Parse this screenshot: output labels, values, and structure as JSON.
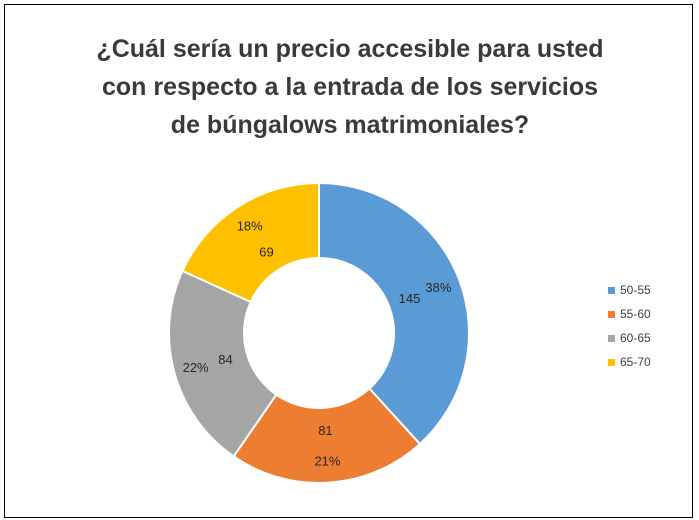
{
  "chart_data": {
    "type": "pie",
    "variant": "donut",
    "title_lines": [
      "¿Cuál sería un precio accesible para usted",
      "con respecto a la entrada de los servicios",
      "de búngalows matrimoniales?"
    ],
    "categories": [
      "50-55",
      "55-60",
      "60-65",
      "65-70"
    ],
    "values": [
      145,
      81,
      84,
      69
    ],
    "value_labels": [
      "145",
      "81",
      "84",
      "69"
    ],
    "percent_labels": [
      "38%",
      "21%",
      "22%",
      "18%"
    ],
    "colors": [
      "#5b9bd5",
      "#ed7d31",
      "#a5a5a5",
      "#ffc000"
    ],
    "legend_position": "right"
  }
}
